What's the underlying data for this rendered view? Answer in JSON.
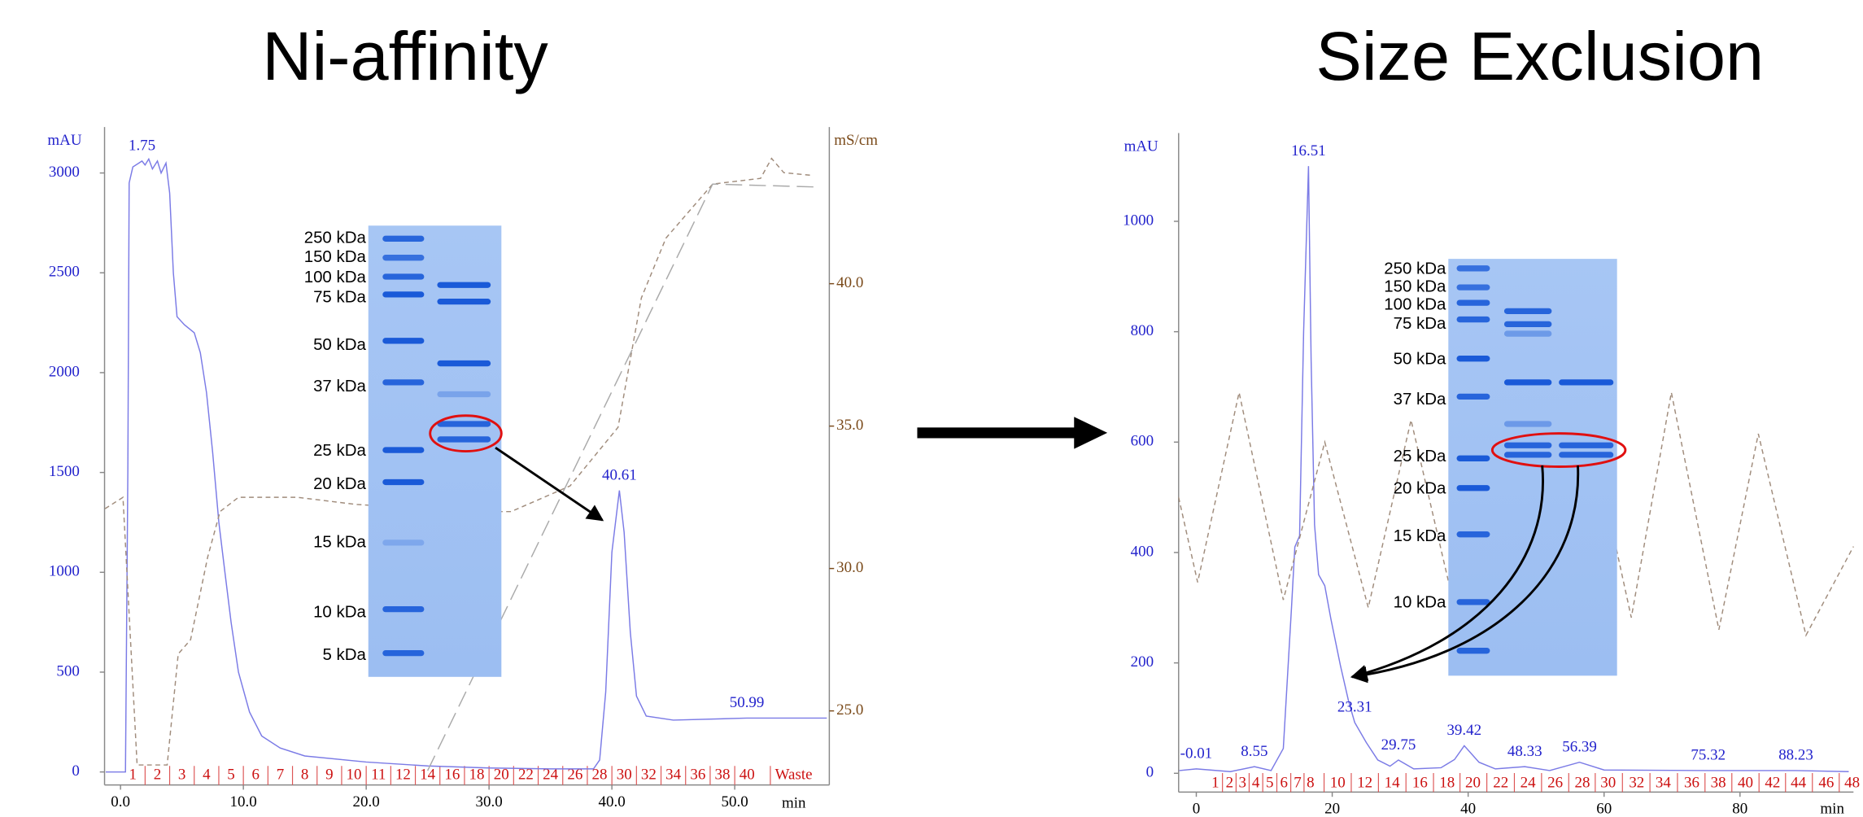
{
  "chart_data": [
    {
      "type": "line",
      "title": "Ni-affinity",
      "y_label": "mAU",
      "y2_label": "mS/cm",
      "x_label": "min",
      "xlim": [
        -1.3,
        57.7
      ],
      "xticks": [
        {
          "value": 0,
          "label": "0.0"
        },
        {
          "value": 10,
          "label": "10.0"
        },
        {
          "value": 20,
          "label": "20.0"
        },
        {
          "value": 30,
          "label": "30.0"
        },
        {
          "value": 40,
          "label": "40.0"
        },
        {
          "value": 50,
          "label": "50.0"
        }
      ],
      "ylim": [
        -65,
        3230
      ],
      "yticks": [
        0,
        500,
        1000,
        1500,
        2000,
        2500,
        3000
      ],
      "y2lim": [
        22.4,
        45.5
      ],
      "y2ticks": [
        {
          "value": 25,
          "label": "25.0"
        },
        {
          "value": 30,
          "label": "30.0"
        },
        {
          "value": 35,
          "label": "35.0"
        },
        {
          "value": 40,
          "label": "40.0"
        }
      ],
      "series": [
        {
          "color": "#7b7be6",
          "x": [
            -1.2,
            0.4,
            0.6,
            0.7,
            1.0,
            1.5,
            1.75,
            2.0,
            2.3,
            2.6,
            3.0,
            3.3,
            3.7,
            4.0,
            4.3,
            4.6,
            5.2,
            6.0,
            6.5,
            7.0,
            7.5,
            8.0,
            8.5,
            9.0,
            9.6,
            10.5,
            11.5,
            13,
            15,
            20,
            25,
            30,
            35,
            38.5,
            39.0,
            39.5,
            40.0,
            40.61,
            41.0,
            41.5,
            42.0,
            42.8,
            45,
            50.99,
            57.5
          ],
          "values": [
            0,
            0,
            1500,
            2950,
            3030,
            3050,
            3060,
            3040,
            3070,
            3020,
            3060,
            3000,
            3050,
            2900,
            2500,
            2280,
            2240,
            2200,
            2100,
            1900,
            1600,
            1250,
            1000,
            750,
            500,
            300,
            180,
            120,
            80,
            50,
            30,
            20,
            15,
            15,
            60,
            400,
            1100,
            1410,
            1200,
            700,
            380,
            280,
            260,
            270,
            270
          ]
        },
        {
          "color": "#a08c7c",
          "dash": "4 3",
          "axis": "y2",
          "x": [
            -1.26,
            0.2,
            1.35,
            3.8,
            4.7,
            5.7,
            7.1,
            8.1,
            9.6,
            14.4,
            19.2,
            28.9,
            31.8,
            36.6,
            40.5,
            42.4,
            44.4,
            48.2,
            52.1,
            53.0,
            54.0,
            56.4
          ],
          "values": [
            32.1,
            32.5,
            23.1,
            23.1,
            27.0,
            27.5,
            30.4,
            32.0,
            32.5,
            32.5,
            32.25,
            32.0,
            32.0,
            32.9,
            34.96,
            39.5,
            41.6,
            43.5,
            43.7,
            44.4,
            43.9,
            43.8
          ]
        },
        {
          "color": "#aaaaaa",
          "dash": "14 6",
          "axis": "y2",
          "x": [
            25,
            48.2,
            56.4
          ],
          "values": [
            22.9,
            43.5,
            43.4
          ]
        }
      ],
      "peaks": [
        1.75,
        40.61,
        50.99
      ],
      "fractions": [
        "1",
        "2",
        "3",
        "4",
        "5",
        "6",
        "7",
        "8",
        "9",
        "10",
        "11",
        "12",
        "14",
        "16",
        "18",
        "20",
        "22",
        "24",
        "26",
        "28",
        "30",
        "32",
        "34",
        "36",
        "38",
        "40",
        "Waste"
      ],
      "fraction_x": [
        1,
        3,
        5,
        7,
        9,
        11,
        13,
        15,
        17,
        19,
        21,
        23,
        25,
        27,
        29,
        31,
        33,
        35,
        37,
        39,
        41,
        43,
        45,
        47,
        49,
        51,
        54.8
      ],
      "gel_markers": [
        "250 kDa",
        "150 kDa",
        "100 kDa",
        "75 kDa",
        "50 kDa",
        "37 kDa",
        "25 kDa",
        "20 kDa",
        "15 kDa",
        "10 kDa",
        "5 kDa"
      ]
    },
    {
      "type": "line",
      "title": "Size Exclusion",
      "y_label": "mAU",
      "x_label": "min",
      "xlim": [
        -2.6,
        96.7
      ],
      "xticks": [
        0,
        20,
        40,
        60,
        80
      ],
      "ylim": [
        -34,
        1160
      ],
      "yticks": [
        0,
        200,
        400,
        600,
        800,
        1000
      ],
      "series": [
        {
          "color": "#7b7be6",
          "x": [
            -2.5,
            0,
            5,
            8.55,
            11,
            12.8,
            14.0,
            14.5,
            15.2,
            15.8,
            16.51,
            16.9,
            17.4,
            18.0,
            18.9,
            19.8,
            21.2,
            22.4,
            23.31,
            25,
            26.7,
            28.5,
            29.75,
            32,
            36,
            38,
            39.42,
            41.6,
            44,
            48.33,
            52,
            56.39,
            60,
            75.32,
            88.23,
            96
          ],
          "values": [
            5,
            8,
            3,
            12,
            5,
            45,
            300,
            410,
            430,
            800,
            1100,
            750,
            450,
            360,
            340,
            280,
            196,
            131,
            92,
            56,
            24,
            13,
            24,
            8,
            10,
            25,
            50,
            20,
            8,
            12,
            5,
            20,
            6,
            5,
            5,
            3
          ]
        },
        {
          "color": "#a08c7c",
          "dash": "4 3",
          "x": [
            -2.6,
            0.2,
            6.3,
            12.8,
            18.9,
            25.3,
            31.6,
            38,
            44.4,
            51,
            57.5,
            64,
            69.9,
            76.9,
            82.7,
            89.7,
            96.7
          ],
          "values": [
            500,
            346,
            690,
            314,
            600,
            300,
            640,
            300,
            640,
            290,
            650,
            282,
            690,
            260,
            615,
            250,
            411
          ]
        }
      ],
      "peaks": [
        -0.01,
        8.55,
        16.51,
        23.31,
        29.75,
        39.42,
        48.33,
        56.39,
        75.32,
        88.23
      ],
      "fractions": [
        "1",
        "2",
        "3",
        "4",
        "5",
        "6",
        "7",
        "8",
        "10",
        "12",
        "14",
        "16",
        "18",
        "20",
        "22",
        "24",
        "26",
        "28",
        "30",
        "32",
        "34",
        "36",
        "38",
        "40",
        "42",
        "44",
        "46",
        "48"
      ],
      "fraction_x": [
        2.8,
        4.9,
        6.8,
        8.75,
        10.8,
        12.9,
        14.9,
        16.8,
        20.8,
        24.8,
        28.8,
        32.9,
        36.9,
        40.7,
        44.8,
        48.8,
        52.8,
        56.8,
        60.6,
        64.8,
        68.7,
        72.9,
        76.8,
        80.8,
        84.8,
        88.6,
        92.7,
        96.5
      ],
      "gel_markers": [
        "250 kDa",
        "150 kDa",
        "100 kDa",
        "75 kDa",
        "50 kDa",
        "37 kDa",
        "25 kDa",
        "20 kDa",
        "15 kDa",
        "10 kDa"
      ]
    }
  ]
}
